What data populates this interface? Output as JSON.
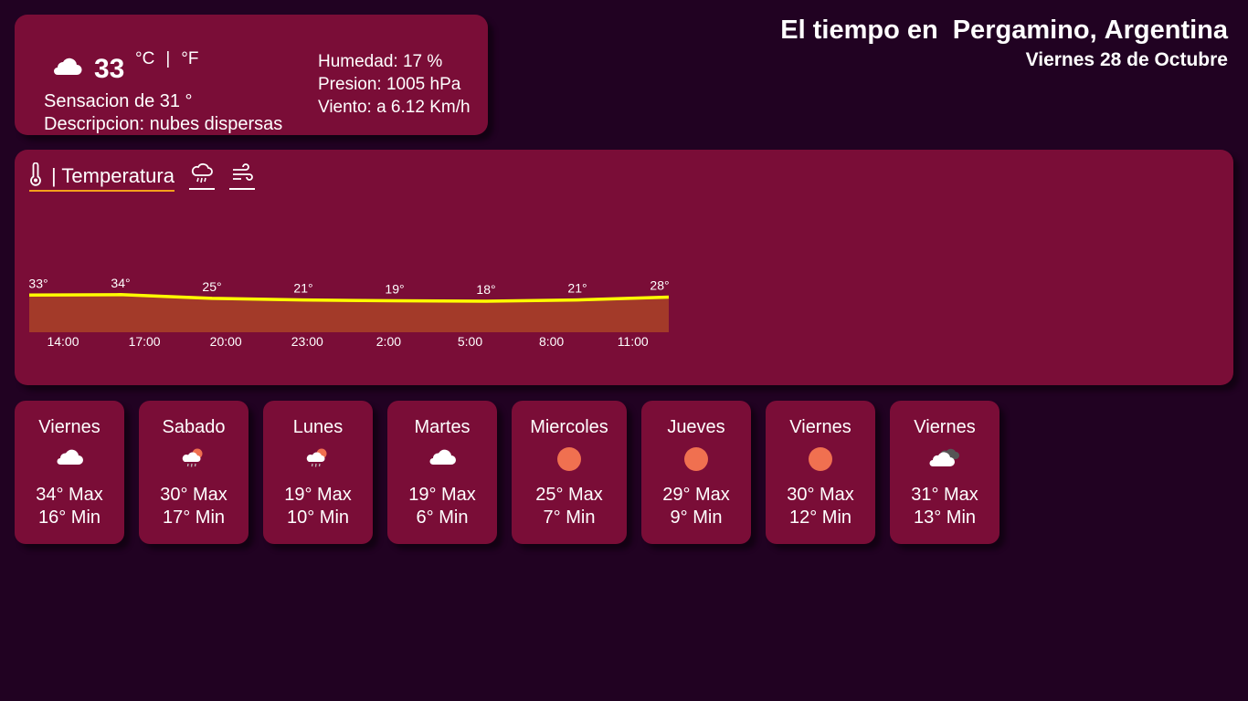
{
  "header": {
    "title_prefix": "El tiempo en",
    "city": "Pergamino",
    "comma": ",",
    "country": "Argentina",
    "date": "Viernes 28 de Octubre"
  },
  "current": {
    "icon": "cloud-icon",
    "temp": "33",
    "unit_c": "°C",
    "unit_sep": "|",
    "unit_f": "°F",
    "feels_like": "Sensacion de 31 °",
    "description": "Descripcion: nubes dispersas",
    "humidity": "Humedad: 17 %",
    "pressure": "Presion: 1005 hPa",
    "wind": "Viento: a 6.12 Km/h"
  },
  "tabs": {
    "temperature_label": "| Temperatura",
    "temperature_icon": "thermometer-icon",
    "rain_icon": "rain-cloud-icon",
    "wind_icon": "wind-icon"
  },
  "chart_data": {
    "type": "area",
    "x": [
      "14:00",
      "17:00",
      "20:00",
      "23:00",
      "2:00",
      "5:00",
      "8:00",
      "11:00"
    ],
    "values": [
      33,
      34,
      25,
      21,
      19,
      18,
      21,
      28
    ],
    "point_labels": [
      "33°",
      "34°",
      "25°",
      "21°",
      "19°",
      "18°",
      "21°",
      "28°"
    ],
    "line_color": "#ffff00",
    "fill_color": "#a33a29"
  },
  "forecast": [
    {
      "day": "Viernes",
      "icon": "cloud-icon",
      "max": "34° Max",
      "min": "16° Min"
    },
    {
      "day": "Sabado",
      "icon": "rain-cloud-sun-icon",
      "max": "30° Max",
      "min": "17° Min"
    },
    {
      "day": "Lunes",
      "icon": "rain-cloud-sun-icon",
      "max": "19° Max",
      "min": "10° Min"
    },
    {
      "day": "Martes",
      "icon": "cloud-icon",
      "max": "19° Max",
      "min": "6° Min"
    },
    {
      "day": "Miercoles",
      "icon": "sun-icon",
      "max": "25° Max",
      "min": "7° Min"
    },
    {
      "day": "Jueves",
      "icon": "sun-icon",
      "max": "29° Max",
      "min": "9° Min"
    },
    {
      "day": "Viernes",
      "icon": "sun-icon",
      "max": "30° Max",
      "min": "12° Min"
    },
    {
      "day": "Viernes",
      "icon": "cloud-dark-icon",
      "max": "31° Max",
      "min": "13° Min"
    }
  ],
  "colors": {
    "background": "#210222",
    "card": "#7a0d37",
    "sun": "#f07050",
    "tab_underline": "#f5a11b"
  }
}
